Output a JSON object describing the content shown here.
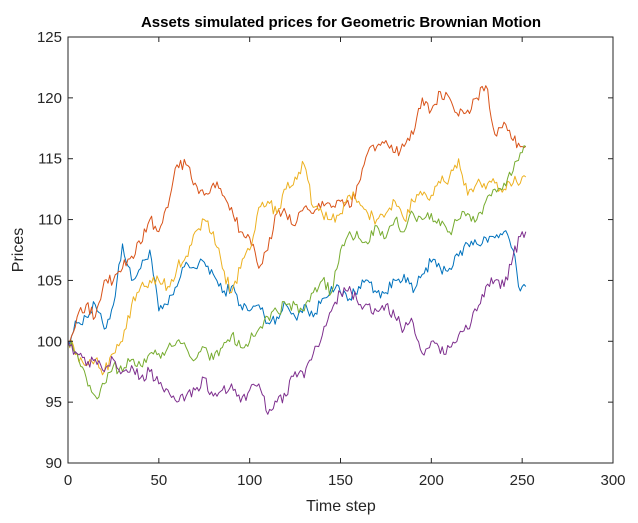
{
  "chart_data": {
    "type": "line",
    "title": "Assets simulated prices for Geometric Brownian Motion",
    "xlabel": "Time step",
    "ylabel": "Prices",
    "xlim": [
      0,
      300
    ],
    "ylim": [
      90,
      125
    ],
    "xticks": [
      0,
      50,
      100,
      150,
      200,
      250,
      300
    ],
    "yticks": [
      90,
      95,
      100,
      105,
      110,
      115,
      120,
      125
    ],
    "grid": false,
    "legend": "none",
    "series": [
      {
        "color": "#0072BD",
        "x": [
          0,
          5,
          10,
          15,
          20,
          25,
          30,
          35,
          40,
          45,
          50,
          55,
          60,
          65,
          70,
          75,
          80,
          85,
          90,
          95,
          100,
          105,
          110,
          115,
          120,
          125,
          130,
          135,
          140,
          145,
          150,
          155,
          160,
          165,
          170,
          175,
          180,
          185,
          190,
          195,
          200,
          205,
          210,
          215,
          220,
          225,
          230,
          235,
          240,
          245,
          248,
          250,
          252
        ],
        "y": [
          100,
          101.5,
          102,
          103,
          101,
          103,
          108,
          105,
          106,
          107.5,
          102.5,
          103,
          104.5,
          106.5,
          106,
          106.5,
          105.5,
          104,
          104.5,
          103,
          102.5,
          103,
          101.5,
          102,
          103,
          102,
          103,
          102,
          103.5,
          104.5,
          104,
          103.5,
          104.5,
          105,
          104,
          104,
          105,
          105.5,
          104,
          105.5,
          106.5,
          106,
          106,
          107,
          108,
          108,
          108.5,
          108.5,
          109,
          107.5,
          104.5,
          104.5,
          104.5
        ]
      },
      {
        "color": "#D95319",
        "x": [
          0,
          5,
          10,
          15,
          20,
          25,
          30,
          35,
          40,
          45,
          50,
          55,
          60,
          65,
          70,
          75,
          80,
          85,
          90,
          95,
          100,
          105,
          110,
          115,
          120,
          125,
          130,
          135,
          140,
          145,
          150,
          155,
          160,
          165,
          170,
          175,
          180,
          185,
          190,
          195,
          200,
          205,
          210,
          215,
          220,
          225,
          230,
          235,
          240,
          245,
          250,
          252
        ],
        "y": [
          100,
          102,
          103,
          102,
          105,
          105,
          106,
          107,
          108,
          110,
          109,
          111,
          114.5,
          114.5,
          113,
          112,
          113,
          112,
          111,
          109,
          108.5,
          106,
          107.5,
          110.5,
          110.5,
          109.5,
          111,
          110.5,
          111.5,
          111,
          111.5,
          111,
          113,
          115.5,
          116,
          116.5,
          115.5,
          116,
          117,
          120,
          119,
          120.5,
          120,
          118.5,
          119,
          120,
          121,
          117,
          118,
          116.5,
          116,
          116
        ]
      },
      {
        "color": "#EDB120",
        "x": [
          0,
          5,
          10,
          15,
          20,
          25,
          30,
          35,
          40,
          45,
          50,
          55,
          60,
          65,
          70,
          75,
          80,
          85,
          90,
          95,
          100,
          105,
          110,
          115,
          120,
          125,
          130,
          135,
          140,
          145,
          150,
          155,
          160,
          165,
          170,
          175,
          180,
          185,
          190,
          195,
          200,
          205,
          210,
          215,
          220,
          225,
          230,
          235,
          240,
          245,
          250,
          252
        ],
        "y": [
          100,
          99,
          98,
          98.5,
          97.5,
          99,
          100,
          103,
          104.5,
          105,
          105,
          104.5,
          106,
          107,
          109,
          110,
          109,
          106,
          104,
          106,
          107.5,
          111,
          111.5,
          110.5,
          112.5,
          113.5,
          114.5,
          111,
          110.5,
          110,
          110.5,
          112,
          111.5,
          110.5,
          110,
          110.5,
          111.5,
          110,
          111.5,
          112,
          112,
          113,
          113.5,
          115,
          112,
          113,
          112.5,
          113,
          112.5,
          113,
          113.5,
          113.5
        ]
      },
      {
        "color": "#77AC30",
        "x": [
          0,
          5,
          10,
          15,
          20,
          25,
          30,
          35,
          40,
          45,
          50,
          55,
          60,
          65,
          70,
          75,
          80,
          85,
          90,
          95,
          100,
          105,
          110,
          115,
          120,
          125,
          130,
          135,
          140,
          145,
          150,
          155,
          160,
          165,
          170,
          175,
          180,
          185,
          190,
          195,
          200,
          205,
          210,
          215,
          220,
          225,
          230,
          235,
          240,
          245,
          250,
          252
        ],
        "y": [
          100,
          99,
          97,
          95.5,
          96.5,
          98,
          97.5,
          98.5,
          98,
          99,
          99,
          99.5,
          100,
          99.5,
          98.5,
          99.5,
          98.5,
          99.5,
          100.5,
          99.5,
          100,
          101,
          102,
          102.5,
          103,
          103,
          102.5,
          104,
          105,
          104,
          107.5,
          109,
          108.5,
          108,
          109.5,
          108.5,
          110,
          109,
          110.5,
          110,
          110.5,
          109.5,
          109,
          110,
          110.5,
          110,
          111.5,
          112.5,
          113,
          114,
          115.5,
          116
        ]
      },
      {
        "color": "#7E2F8E",
        "x": [
          0,
          5,
          10,
          15,
          20,
          25,
          30,
          35,
          40,
          45,
          50,
          55,
          60,
          65,
          70,
          75,
          80,
          85,
          90,
          95,
          100,
          105,
          110,
          115,
          120,
          125,
          130,
          135,
          140,
          145,
          150,
          155,
          160,
          165,
          170,
          175,
          180,
          185,
          190,
          195,
          200,
          205,
          210,
          215,
          220,
          225,
          230,
          235,
          240,
          245,
          250,
          252
        ],
        "y": [
          100,
          99,
          98,
          98.5,
          97.5,
          98.5,
          97.5,
          98,
          97,
          97.5,
          96.5,
          96,
          95,
          95.5,
          96,
          97,
          95.5,
          96,
          96.5,
          95,
          96,
          96.5,
          94,
          95,
          95.5,
          97.5,
          97,
          99,
          100.5,
          102.5,
          104,
          104.5,
          103,
          103,
          102.5,
          103,
          102,
          101,
          101.5,
          99,
          100,
          99,
          99.5,
          100.5,
          101,
          102.5,
          104.5,
          105,
          104.5,
          107,
          109,
          109
        ]
      }
    ]
  }
}
